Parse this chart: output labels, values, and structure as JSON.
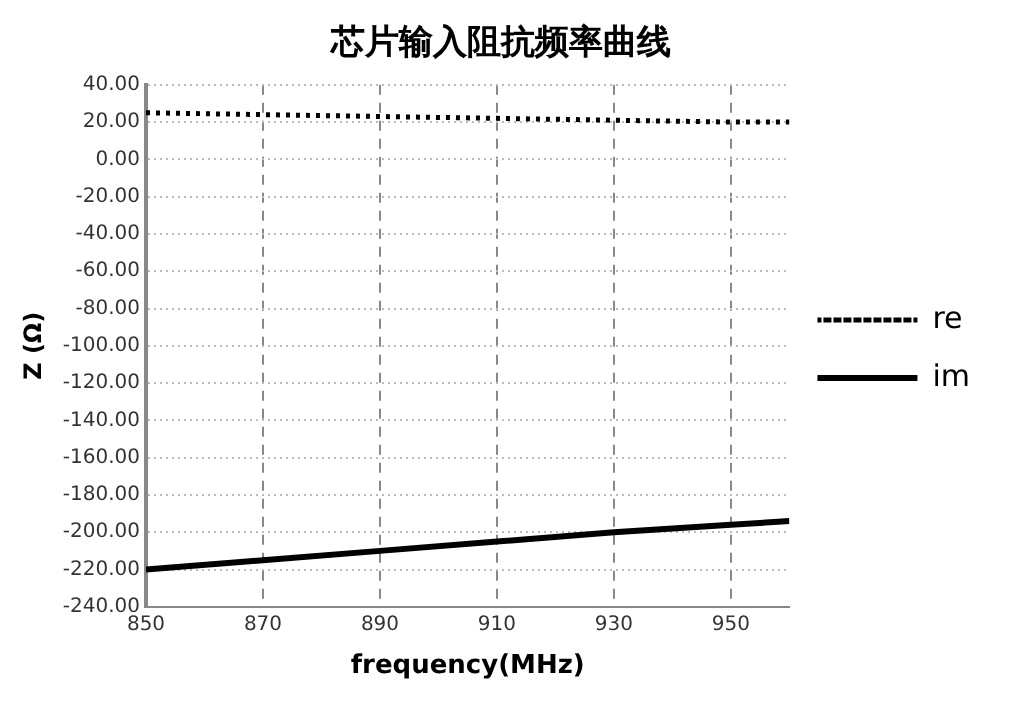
{
  "chart_data": {
    "type": "line",
    "title": "芯片输入阻抗频率曲线",
    "xlabel": "frequency(MHz)",
    "ylabel": "Z (Ω)",
    "x": [
      850,
      870,
      890,
      910,
      930,
      950,
      960
    ],
    "series": [
      {
        "name": "re",
        "color": "#000000",
        "line_style": "dotted",
        "values": [
          25,
          24,
          23,
          22,
          21,
          20,
          20
        ]
      },
      {
        "name": "im",
        "color": "#000000",
        "line_style": "solid",
        "values": [
          -220,
          -215,
          -210,
          -205,
          -200,
          -196,
          -194
        ]
      }
    ],
    "xlim": [
      850,
      960
    ],
    "xticks": [
      850,
      870,
      890,
      910,
      930,
      950
    ],
    "ylim": [
      -240,
      40
    ],
    "yticks": [
      {
        "value": -240,
        "label": "-240.00"
      },
      {
        "value": -220,
        "label": "-220.00"
      },
      {
        "value": -200,
        "label": "-200.00"
      },
      {
        "value": -180,
        "label": "-180.00"
      },
      {
        "value": -160,
        "label": "-160.00"
      },
      {
        "value": -140,
        "label": "-140.00"
      },
      {
        "value": -120,
        "label": "-120.00"
      },
      {
        "value": -100,
        "label": "-100.00"
      },
      {
        "value": -80,
        "label": "-80.00"
      },
      {
        "value": -60,
        "label": "-60.00"
      },
      {
        "value": -40,
        "label": "-40.00"
      },
      {
        "value": -20,
        "label": "-20.00"
      },
      {
        "value": 0,
        "label": "0.00"
      },
      {
        "value": 20,
        "label": "20.00"
      },
      {
        "value": 40,
        "label": "40.00"
      }
    ],
    "grid": true,
    "legend": "right",
    "marker": "none"
  }
}
